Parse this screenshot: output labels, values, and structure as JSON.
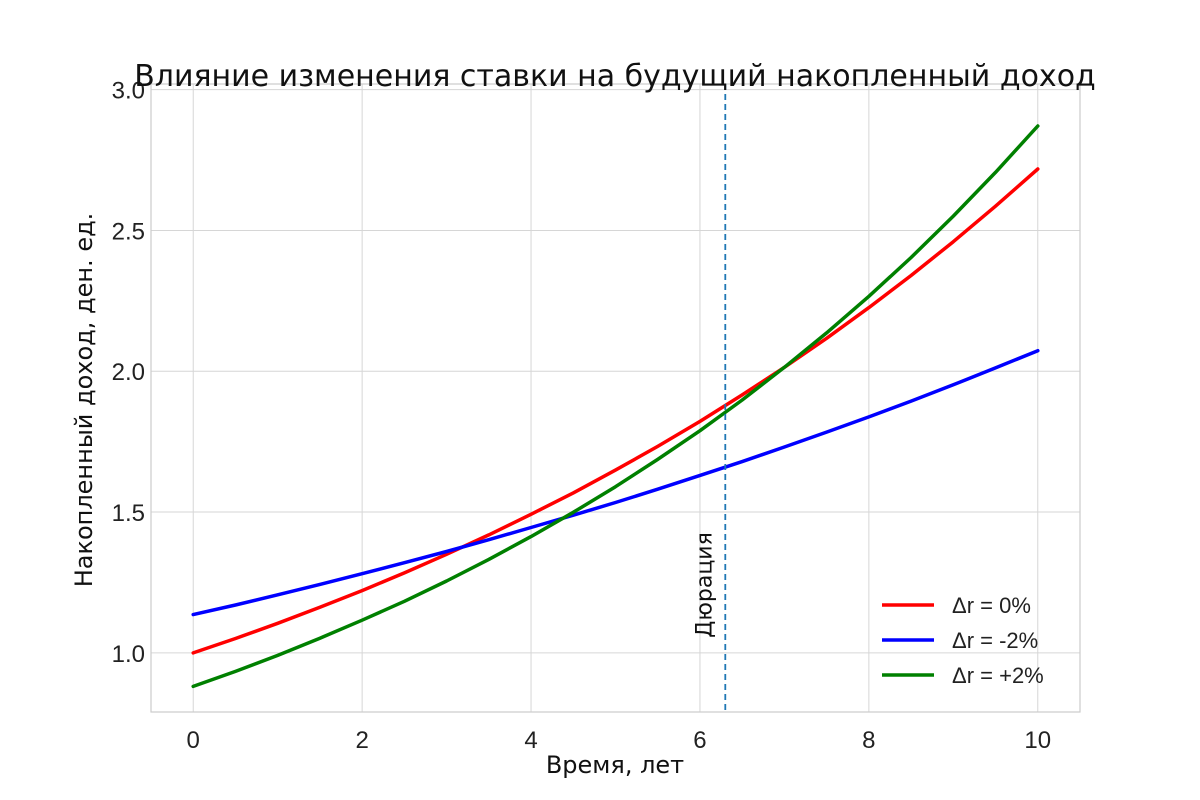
{
  "chart_data": {
    "type": "line",
    "title": "Влияние изменения ставки на будущий накопленный доход",
    "xlabel": "Время, лет",
    "ylabel": "Накопленный доход, ден. ед.",
    "xlim": [
      -0.5,
      10.5
    ],
    "ylim": [
      0.79,
      3.02
    ],
    "xticks": [
      0,
      2,
      4,
      6,
      8,
      10
    ],
    "xtick_labels": [
      "0",
      "2",
      "4",
      "6",
      "8",
      "10"
    ],
    "yticks": [
      1.0,
      1.5,
      2.0,
      2.5,
      3.0
    ],
    "ytick_labels": [
      "1.0",
      "1.5",
      "2.0",
      "2.5",
      "3.0"
    ],
    "grid": true,
    "legend_position": "bottom-right",
    "x": [
      0,
      0.5,
      1,
      1.5,
      2,
      2.5,
      3,
      3.5,
      4,
      4.5,
      5,
      5.5,
      6,
      6.5,
      7,
      7.5,
      8,
      8.5,
      9,
      9.5,
      10
    ],
    "series": [
      {
        "name": "Δr = 0%",
        "color": "#ff0000",
        "values": [
          1.0,
          1.051,
          1.105,
          1.162,
          1.221,
          1.284,
          1.35,
          1.419,
          1.492,
          1.568,
          1.649,
          1.733,
          1.822,
          1.916,
          2.014,
          2.117,
          2.226,
          2.34,
          2.46,
          2.586,
          2.718
        ]
      },
      {
        "name": "Δr = -2%",
        "color": "#0000ff",
        "values": [
          1.136,
          1.17,
          1.206,
          1.243,
          1.281,
          1.32,
          1.36,
          1.402,
          1.445,
          1.489,
          1.534,
          1.581,
          1.63,
          1.679,
          1.731,
          1.784,
          1.838,
          1.894,
          1.952,
          2.012,
          2.073
        ]
      },
      {
        "name": "Δr = +2%",
        "color": "#008000",
        "values": [
          0.881,
          0.934,
          0.991,
          1.052,
          1.116,
          1.183,
          1.255,
          1.332,
          1.413,
          1.499,
          1.59,
          1.687,
          1.789,
          1.898,
          2.014,
          2.136,
          2.266,
          2.404,
          2.551,
          2.706,
          2.871
        ]
      }
    ],
    "vline": {
      "x": 6.3,
      "label": "Дюрация",
      "color": "#1f77b4",
      "style": "dashed"
    }
  }
}
